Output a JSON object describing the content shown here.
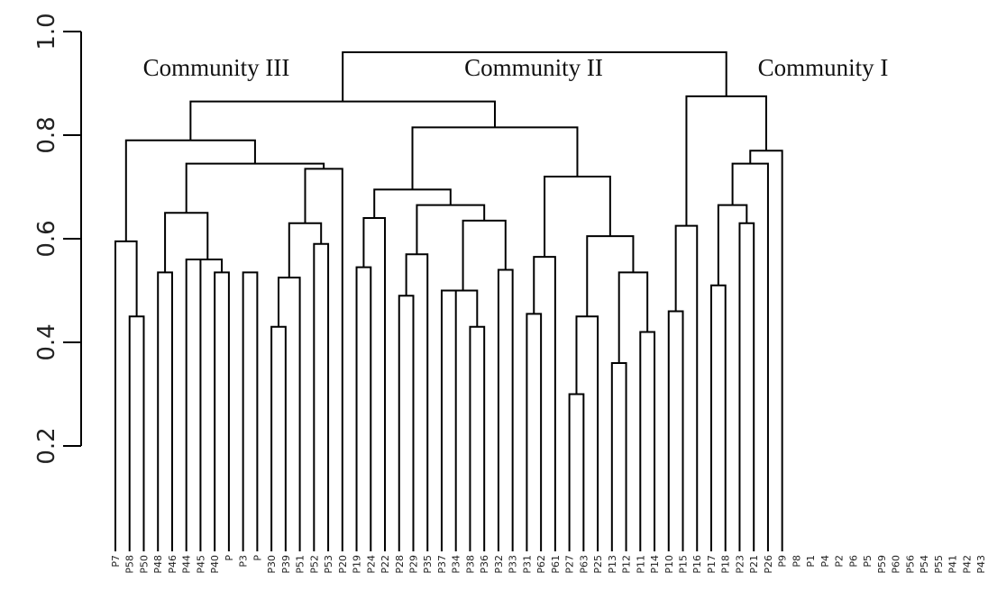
{
  "chart_data": {
    "type": "dendrogram",
    "y_axis": {
      "ylim": [
        0.1,
        1.0
      ],
      "ticks": [
        "0.2",
        "0.4",
        "0.6",
        "0.8",
        "1.0"
      ]
    },
    "annotations": [
      {
        "text": "Community III",
        "y": 0.91
      },
      {
        "text": "Community II",
        "y": 0.91
      },
      {
        "text": "Community I",
        "y": 0.91
      }
    ],
    "leaf_labels": [
      "P7",
      "P58",
      "P50",
      "P48",
      "P46",
      "P44",
      "P45",
      "P40",
      "P",
      "P3",
      "P",
      "P30",
      "P39",
      "P51",
      "P52",
      "P53",
      "P20",
      "P19",
      "P24",
      "P22",
      "P28",
      "P29",
      "P35",
      "P37",
      "P34",
      "P38",
      "P36",
      "P32",
      "P33",
      "P31",
      "P62",
      "P61",
      "P27",
      "P63",
      "P25",
      "P13",
      "P12",
      "P11",
      "P14",
      "P10",
      "P15",
      "P16",
      "P17",
      "P18",
      "P23",
      "P21",
      "P26",
      "P9",
      "P8",
      "P1",
      "P4",
      "P2",
      "P6",
      "P5",
      "P59",
      "P60",
      "P56",
      "P54",
      "P55",
      "P41",
      "P42",
      "P43"
    ],
    "merges": [
      {
        "id": "a1",
        "left": "L1",
        "right": "L2",
        "height": 0.45
      },
      {
        "id": "a2",
        "left": "L0",
        "right": "a1",
        "height": 0.595
      },
      {
        "id": "a3",
        "left": "L3",
        "right": "L4",
        "height": 0.535
      },
      {
        "id": "a4",
        "left": "L5",
        "right": "L6",
        "height": 0.56
      },
      {
        "id": "a5",
        "left": "L7",
        "right": "L8",
        "height": 0.535
      },
      {
        "id": "a6",
        "left": "a4",
        "right": "a5",
        "height": 0.56
      },
      {
        "id": "a7",
        "left": "a3",
        "right": "a6",
        "height": 0.65
      },
      {
        "id": "a8",
        "left": "L9",
        "right": "L10",
        "height": 0.535
      },
      {
        "id": "a9",
        "left": "L11",
        "right": "L12",
        "height": 0.43
      },
      {
        "id": "a10",
        "left": "L13",
        "right": "a9",
        "height": 0.525
      },
      {
        "id": "a11",
        "left": "L14",
        "right": "L15",
        "height": 0.59
      },
      {
        "id": "a12",
        "left": "a10",
        "right": "a11",
        "height": 0.63
      },
      {
        "id": "a13",
        "left": "L16",
        "right": "a12",
        "height": 0.735
      },
      {
        "id": "a14",
        "left": "a7",
        "right": "a13",
        "height": 0.745
      },
      {
        "id": "a15",
        "left": "a2",
        "right": "a14",
        "height": 0.79
      },
      {
        "id": "a16",
        "left": "L17",
        "right": "L18",
        "height": 0.545
      },
      {
        "id": "a17",
        "left": "L19",
        "right": "a16",
        "height": 0.64
      },
      {
        "id": "a18",
        "left": "L20",
        "right": "L21",
        "height": 0.49
      },
      {
        "id": "a19",
        "left": "L22",
        "right": "a18",
        "height": 0.57
      },
      {
        "id": "a20",
        "left": "L23",
        "right": "L24",
        "height": 0.5
      },
      {
        "id": "a21",
        "left": "L25",
        "right": "L26",
        "height": 0.43
      },
      {
        "id": "a22",
        "left": "a20",
        "right": "a21",
        "height": 0.5
      },
      {
        "id": "a23",
        "left": "L27",
        "right": "L28",
        "height": 0.54
      },
      {
        "id": "a24",
        "left": "a22",
        "right": "a23",
        "height": 0.635
      },
      {
        "id": "a25",
        "left": "a19",
        "right": "a24",
        "height": 0.665
      },
      {
        "id": "a26",
        "left": "a17",
        "right": "a25",
        "height": 0.695
      },
      {
        "id": "a27",
        "left": "L29",
        "right": "L30",
        "height": 0.455
      },
      {
        "id": "a28",
        "left": "L31",
        "right": "a27",
        "height": 0.565
      },
      {
        "id": "a29",
        "left": "L32",
        "right": "L33",
        "height": 0.3
      },
      {
        "id": "a30",
        "left": "L34",
        "right": "a29",
        "height": 0.45
      },
      {
        "id": "a31",
        "left": "L35",
        "right": "L36",
        "height": 0.36
      },
      {
        "id": "a32",
        "left": "L37",
        "right": "L38",
        "height": 0.42
      },
      {
        "id": "a33",
        "left": "a31",
        "right": "a32",
        "height": 0.535
      },
      {
        "id": "a34",
        "left": "a30",
        "right": "a33",
        "height": 0.605
      },
      {
        "id": "a35",
        "left": "a28",
        "right": "a34",
        "height": 0.72
      },
      {
        "id": "a36",
        "left": "a26",
        "right": "a35",
        "height": 0.815
      },
      {
        "id": "a37",
        "left": "a15",
        "right": "a36",
        "height": 0.865
      },
      {
        "id": "a38",
        "left": "L39",
        "right": "L40",
        "height": 0.46
      },
      {
        "id": "a39",
        "left": "L41",
        "right": "a38",
        "height": 0.625
      },
      {
        "id": "a40",
        "left": "L42",
        "right": "L43",
        "height": 0.51
      },
      {
        "id": "a41",
        "left": "L44",
        "right": "L45",
        "height": 0.63
      },
      {
        "id": "a42",
        "left": "a40",
        "right": "a41",
        "height": 0.665
      },
      {
        "id": "a43",
        "left": "L46",
        "right": "a42",
        "height": 0.745
      },
      {
        "id": "a44",
        "left": "L47",
        "right": "a43",
        "height": 0.77
      },
      {
        "id": "a45",
        "left": "a39",
        "right": "a44",
        "height": 0.875
      },
      {
        "id": "a46",
        "left": "a37",
        "right": "a45",
        "height": 0.96
      }
    ]
  }
}
